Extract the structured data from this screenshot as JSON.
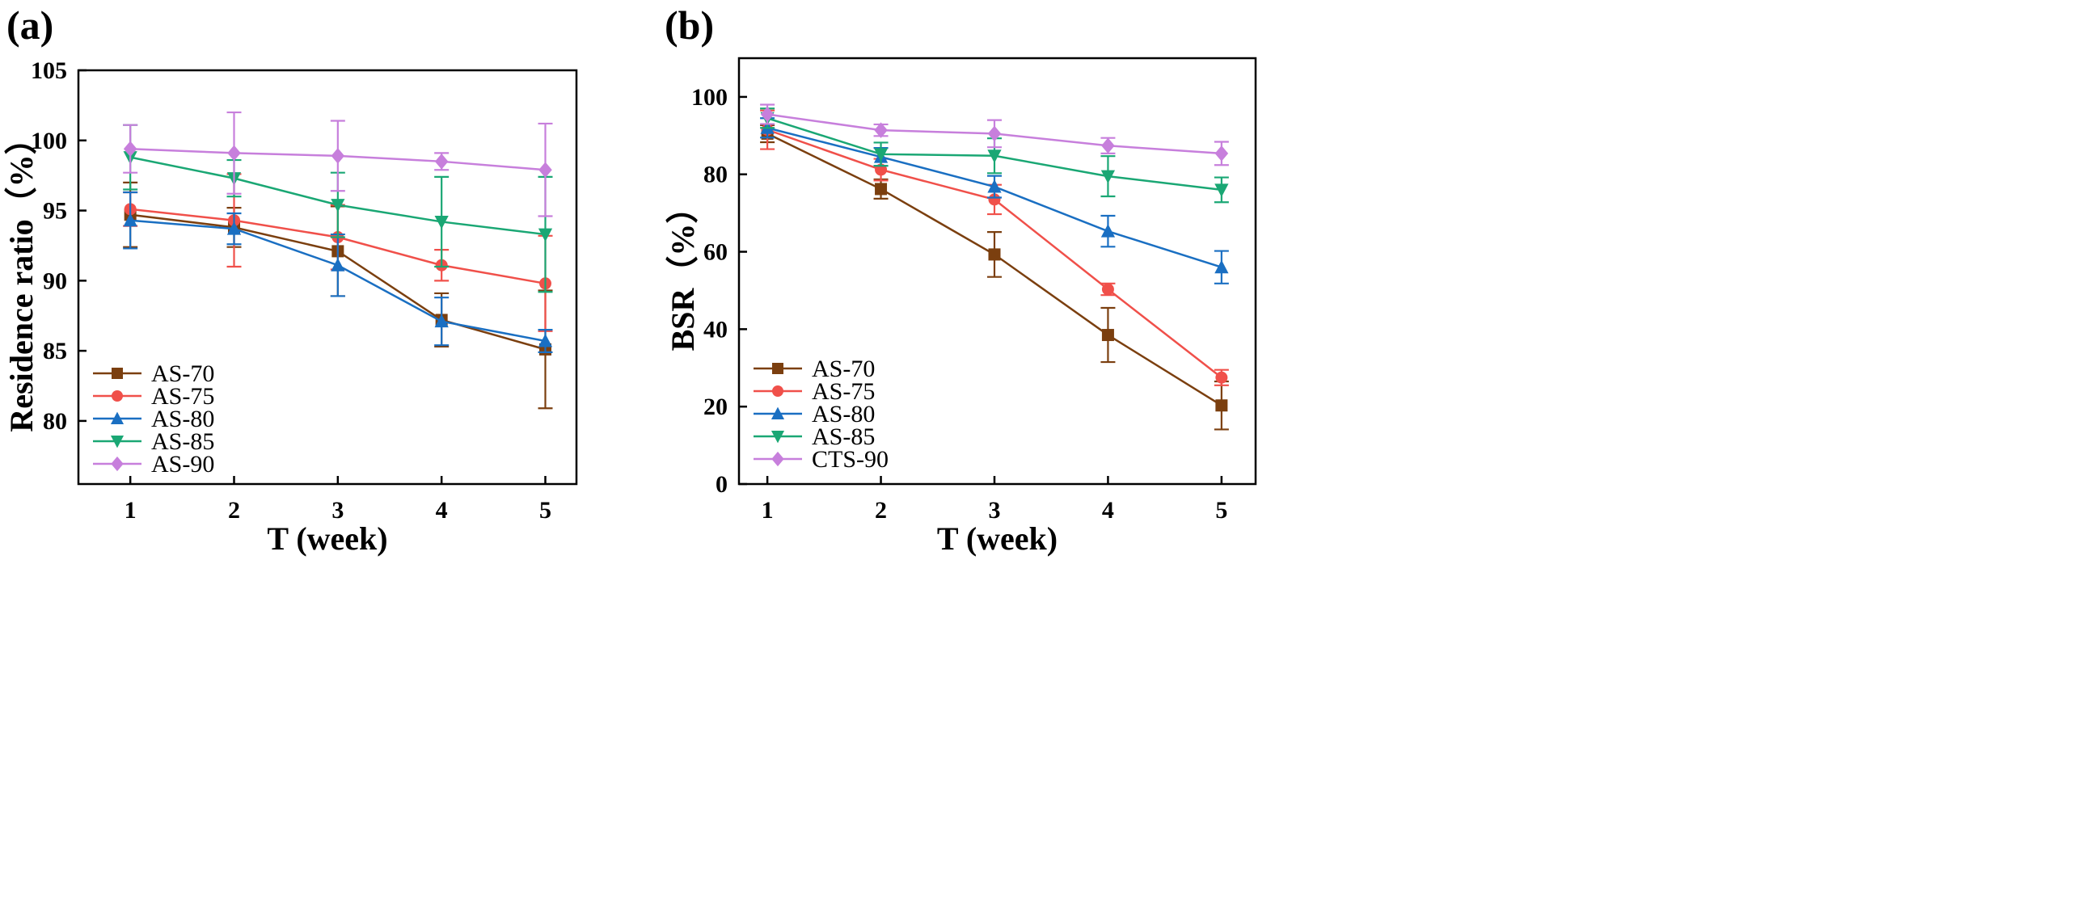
{
  "panels": {
    "a_label": "(a)",
    "b_label": "(b)"
  },
  "chart_data": [
    {
      "id": "a",
      "type": "line",
      "panel_label": "(a)",
      "xlabel": "T (week)",
      "ylabel": "Residence ratio（%）",
      "xlim": [
        0.5,
        5.3
      ],
      "ylim": [
        75.5,
        105
      ],
      "xticks": [
        1,
        2,
        3,
        4,
        5
      ],
      "yticks": [
        80,
        85,
        90,
        95,
        100,
        105
      ],
      "legend_position": "bottom-left",
      "series": [
        {
          "name": "AS-70",
          "color": "#7b3f0f",
          "marker": "square",
          "x": [
            1,
            2,
            3,
            4,
            5
          ],
          "y": [
            94.7,
            93.8,
            92.1,
            87.2,
            85.1
          ],
          "err": [
            2.3,
            1.4,
            3.2,
            1.9,
            4.2
          ]
        },
        {
          "name": "AS-75",
          "color": "#f0504a",
          "marker": "circle",
          "x": [
            1,
            2,
            3,
            4,
            5
          ],
          "y": [
            95.1,
            94.3,
            93.1,
            91.1,
            89.8
          ],
          "err": [
            1.2,
            3.3,
            2.3,
            1.1,
            3.4
          ]
        },
        {
          "name": "AS-80",
          "color": "#1a6fc2",
          "marker": "triangle-up",
          "x": [
            1,
            2,
            3,
            4,
            5
          ],
          "y": [
            94.3,
            93.7,
            91.1,
            87.1,
            85.7
          ],
          "err": [
            2.0,
            1.1,
            2.2,
            1.7,
            0.8
          ]
        },
        {
          "name": "AS-85",
          "color": "#1aa774",
          "marker": "triangle-down",
          "x": [
            1,
            2,
            3,
            4,
            5
          ],
          "y": [
            98.8,
            97.3,
            95.4,
            94.2,
            93.3
          ],
          "err": [
            2.3,
            1.3,
            2.3,
            3.2,
            4.1
          ]
        },
        {
          "name": "AS-90",
          "color": "#c77fdc",
          "marker": "diamond",
          "x": [
            1,
            2,
            3,
            4,
            5
          ],
          "y": [
            99.4,
            99.1,
            98.9,
            98.5,
            97.9
          ],
          "err": [
            1.7,
            2.9,
            2.5,
            0.6,
            3.3
          ]
        }
      ]
    },
    {
      "id": "b",
      "type": "line",
      "panel_label": "(b)",
      "xlabel": "T (week)",
      "ylabel": "BSR（%）",
      "xlim": [
        0.75,
        5.3
      ],
      "ylim": [
        0,
        110
      ],
      "xticks": [
        1,
        2,
        3,
        4,
        5
      ],
      "yticks": [
        0,
        20,
        40,
        60,
        80,
        100
      ],
      "legend_position": "bottom-left",
      "series": [
        {
          "name": "AS-70",
          "color": "#7b3f0f",
          "marker": "square",
          "x": [
            1,
            2,
            3,
            4,
            5
          ],
          "y": [
            90.5,
            76.2,
            59.3,
            38.5,
            20.3
          ],
          "err": [
            2.2,
            2.5,
            5.8,
            7.0,
            6.2
          ]
        },
        {
          "name": "AS-75",
          "color": "#f0504a",
          "marker": "circle",
          "x": [
            1,
            2,
            3,
            4,
            5
          ],
          "y": [
            91.5,
            81.2,
            73.5,
            50.3,
            27.5
          ],
          "err": [
            5.0,
            2.8,
            3.8,
            1.5,
            2.0
          ]
        },
        {
          "name": "AS-80",
          "color": "#1a6fc2",
          "marker": "triangle-up",
          "x": [
            1,
            2,
            3,
            4,
            5
          ],
          "y": [
            92.0,
            84.5,
            76.8,
            65.3,
            56.0
          ],
          "err": [
            2.5,
            2.3,
            2.8,
            4.0,
            4.2
          ]
        },
        {
          "name": "AS-85",
          "color": "#1aa774",
          "marker": "triangle-down",
          "x": [
            1,
            2,
            3,
            4,
            5
          ],
          "y": [
            94.5,
            85.2,
            84.8,
            79.5,
            76.0
          ],
          "err": [
            2.5,
            3.0,
            4.5,
            5.2,
            3.2
          ]
        },
        {
          "name": "CTS-90",
          "color": "#c77fdc",
          "marker": "diamond",
          "x": [
            1,
            2,
            3,
            4,
            5
          ],
          "y": [
            95.5,
            91.4,
            90.5,
            87.4,
            85.4
          ],
          "err": [
            2.5,
            1.5,
            3.5,
            2.0,
            3.0
          ]
        }
      ]
    }
  ]
}
